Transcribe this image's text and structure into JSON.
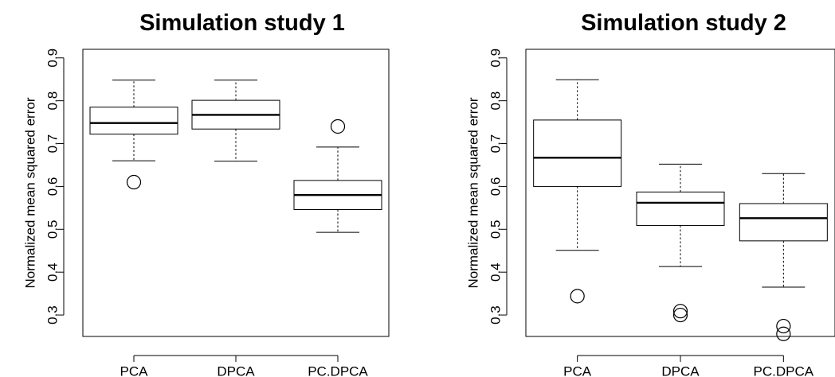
{
  "chart_data": [
    {
      "type": "box",
      "title": "Simulation study 1",
      "xlabel": "",
      "ylabel": "Normalized mean squared error",
      "ylim": [
        0.25,
        0.92
      ],
      "yticks": [
        0.3,
        0.4,
        0.5,
        0.6,
        0.7,
        0.8,
        0.9
      ],
      "grid": false,
      "categories": [
        "PCA",
        "DPCA",
        "PC.DPCA"
      ],
      "boxes": [
        {
          "min": 0.66,
          "q1": 0.722,
          "median": 0.748,
          "q3": 0.785,
          "max": 0.848,
          "outliers": [
            0.61
          ]
        },
        {
          "min": 0.659,
          "q1": 0.734,
          "median": 0.767,
          "q3": 0.801,
          "max": 0.848,
          "outliers": []
        },
        {
          "min": 0.493,
          "q1": 0.546,
          "median": 0.58,
          "q3": 0.614,
          "max": 0.692,
          "outliers": [
            0.74
          ]
        }
      ]
    },
    {
      "type": "box",
      "title": "Simulation study 2",
      "xlabel": "",
      "ylabel": "Normalized mean squared error",
      "ylim": [
        0.25,
        0.92
      ],
      "yticks": [
        0.3,
        0.4,
        0.5,
        0.6,
        0.7,
        0.8,
        0.9
      ],
      "grid": false,
      "categories": [
        "PCA",
        "DPCA",
        "PC.DPCA"
      ],
      "boxes": [
        {
          "min": 0.451,
          "q1": 0.6,
          "median": 0.667,
          "q3": 0.755,
          "max": 0.849,
          "outliers": [
            0.344
          ]
        },
        {
          "min": 0.413,
          "q1": 0.509,
          "median": 0.562,
          "q3": 0.587,
          "max": 0.652,
          "outliers": [
            0.3,
            0.309
          ]
        },
        {
          "min": 0.365,
          "q1": 0.473,
          "median": 0.526,
          "q3": 0.56,
          "max": 0.63,
          "outliers": [
            0.256,
            0.274
          ]
        }
      ]
    }
  ]
}
